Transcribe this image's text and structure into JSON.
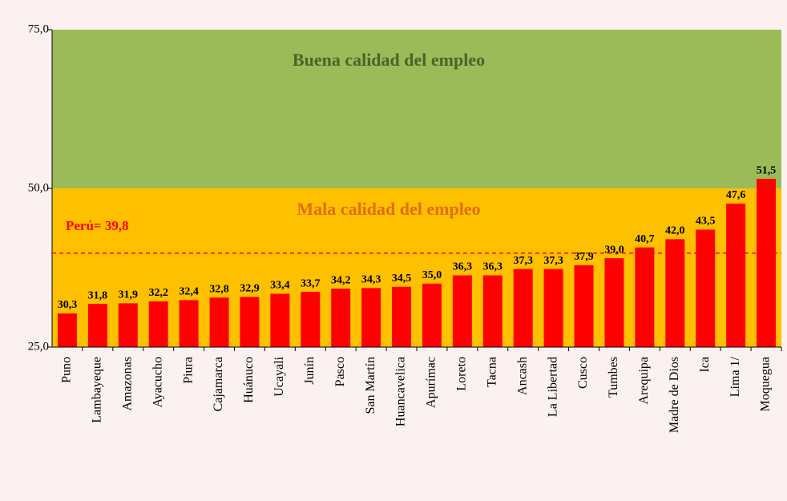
{
  "chart_data": {
    "type": "bar",
    "categories": [
      "Puno",
      "Lambayeque",
      "Amazonas",
      "Ayacucho",
      "Piura",
      "Cajamarca",
      "Huánuco",
      "Ucayali",
      "Junín",
      "Pasco",
      "San Martín",
      "Huancavelica",
      "Apurímac",
      "Loreto",
      "Tacna",
      "Ancash",
      "La Libertad",
      "Cusco",
      "Tumbes",
      "Arequipa",
      "Madre de Dios",
      "Ica",
      "Lima 1/",
      "Moquegua"
    ],
    "values": [
      30.3,
      31.8,
      31.9,
      32.2,
      32.4,
      32.8,
      32.9,
      33.4,
      33.7,
      34.2,
      34.3,
      34.5,
      35.0,
      36.3,
      36.3,
      37.3,
      37.3,
      37.9,
      39.0,
      40.7,
      42.0,
      43.5,
      47.6,
      51.5
    ],
    "value_labels": [
      "30,3",
      "31,8",
      "31,9",
      "32,2",
      "32,4",
      "32,8",
      "32,9",
      "33,4",
      "33,7",
      "34,2",
      "34,3",
      "34,5",
      "35,0",
      "36,3",
      "36,3",
      "37,3",
      "37,3",
      "37,9",
      "39,0",
      "40,7",
      "42,0",
      "43,5",
      "47,6",
      "51,5"
    ],
    "color": "#ff0000",
    "ylim": [
      25,
      75
    ],
    "yticks": [
      {
        "value": 25,
        "label": "25,0"
      },
      {
        "value": 50,
        "label": "50,0"
      },
      {
        "value": 75,
        "label": "75,0"
      }
    ],
    "bands": [
      {
        "label": "Buena calidad del empleo",
        "from": 50,
        "to": 75,
        "color": "#9bbb59",
        "text_color": "#4f6228"
      },
      {
        "label": "Mala calidad del empleo",
        "from": 25,
        "to": 50,
        "color": "#ffc000",
        "text_color": "#e46c0a"
      }
    ],
    "reference": {
      "label": "Perú= 39,8",
      "value": 39.8,
      "color": "#ff0000"
    }
  }
}
